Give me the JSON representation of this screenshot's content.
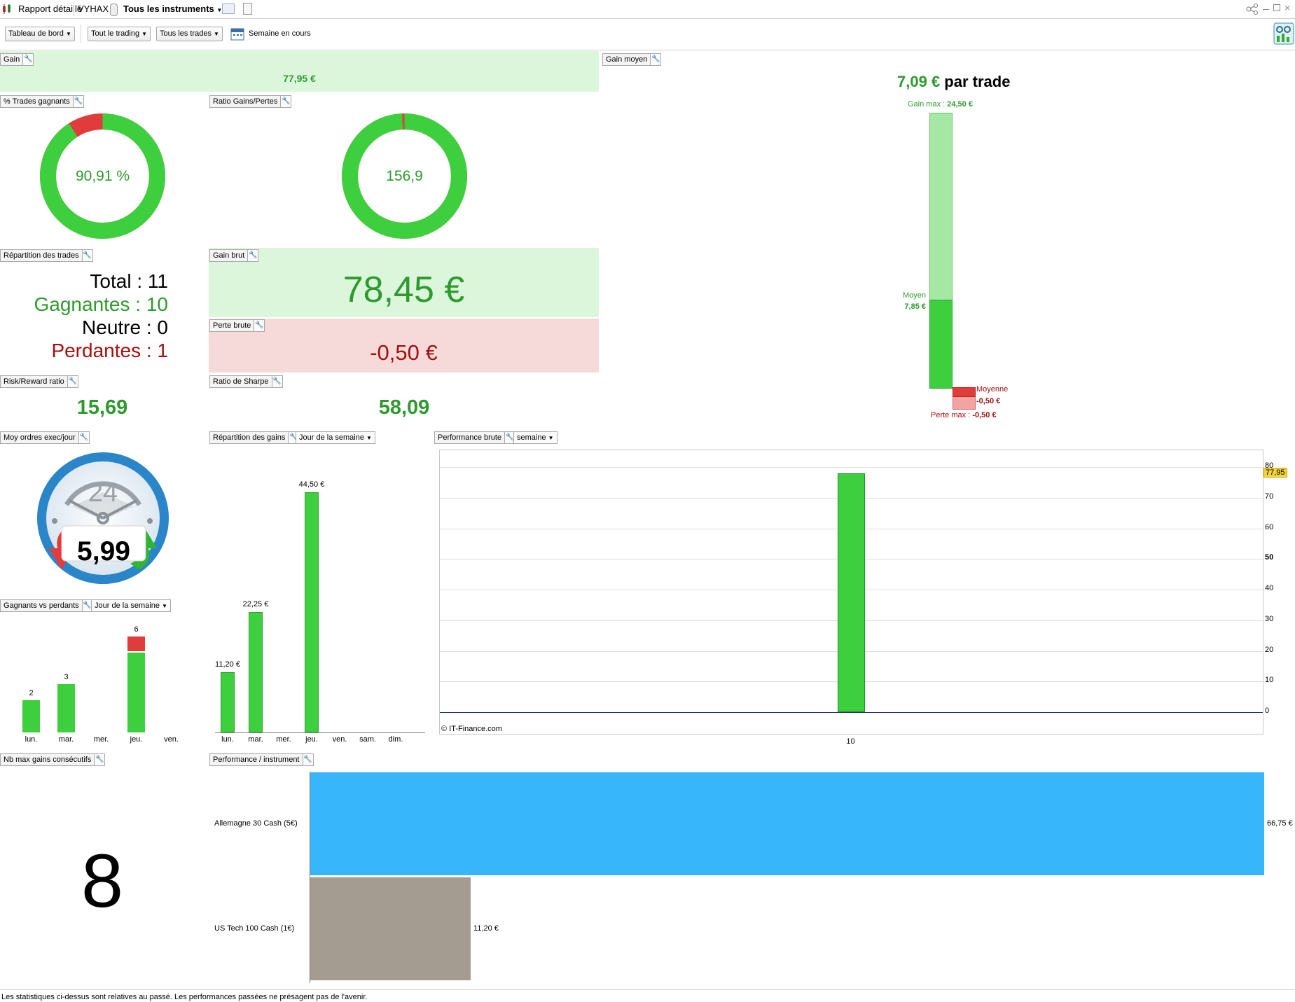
{
  "topbar": {
    "report_label": "Rapport détaillé",
    "account": "VYHAX",
    "instrument_selector": "Tous les instruments"
  },
  "toolbar": {
    "dashboard": "Tableau de bord",
    "trading": "Tout le trading",
    "trades": "Tous les trades",
    "period": "Semaine en cours"
  },
  "panels": {
    "gain": {
      "title": "Gain",
      "value": "77,95 €"
    },
    "gain_moyen": {
      "title": "Gain moyen",
      "value": "7,09 €",
      "suffix": "par trade",
      "gain_max_label": "Gain max :",
      "gain_max_value": "24,50 €",
      "moyen_label": "Moyen",
      "moyen_value": "7,85 €",
      "moyenne_label": "Moyenne",
      "moyenne_value": "-0,50 €",
      "perte_max_label": "Perte max :",
      "perte_max_value": "-0,50 €",
      "avg_gain_fraction": 0.32,
      "avg_loss_fraction": 1.0
    },
    "pct_trades": {
      "title": "% Trades gagnants",
      "value": "90,91 %",
      "win_fraction": 0.9091
    },
    "ratio_gp": {
      "title": "Ratio Gains/Pertes",
      "value": "156,9",
      "gain_fraction": 0.9937
    },
    "repartition": {
      "title": "Répartition des trades",
      "total_label": "Total",
      "total": "11",
      "gagnantes_label": "Gagnantes",
      "gagnantes": "10",
      "neutre_label": "Neutre",
      "neutre": "0",
      "perdantes_label": "Perdantes",
      "perdantes": "1",
      "sep": " : "
    },
    "gain_brut": {
      "title": "Gain brut",
      "value": "78,45 €"
    },
    "perte_brute": {
      "title": "Perte brute",
      "value": "-0,50 €"
    },
    "risk_reward": {
      "title": "Risk/Reward ratio",
      "value": "15,69"
    },
    "sharpe": {
      "title": "Ratio de Sharpe",
      "value": "58,09"
    },
    "moy_ordres": {
      "title": "Moy ordres exec/jour",
      "value": "5,99",
      "gauge_number": "24"
    },
    "repartition_gains": {
      "title": "Répartition des gains",
      "dropdown": "Jour de la semaine"
    },
    "perf_brute": {
      "title": "Performance brute",
      "dropdown": "semaine",
      "copyright": "© IT-Finance.com"
    },
    "gagnants_perdants": {
      "title": "Gagnants vs perdants",
      "dropdown": "Jour de la semaine"
    },
    "nb_max_gains": {
      "title": "Nb max gains consécutifs",
      "value": "8"
    },
    "perf_instrument": {
      "title": "Performance / instrument"
    }
  },
  "chart_data": [
    {
      "type": "bar",
      "title": "Répartition des gains",
      "categories": [
        "lun.",
        "mar.",
        "mer.",
        "jeu.",
        "ven.",
        "sam.",
        "dim."
      ],
      "values": [
        11.2,
        22.25,
        null,
        44.5,
        null,
        null,
        null
      ],
      "labels": [
        "11,20 €",
        "22,25 €",
        "",
        "44,50 €",
        "",
        "",
        ""
      ],
      "ylim": [
        0,
        48
      ]
    },
    {
      "type": "bar",
      "title": "Gagnants vs perdants",
      "categories": [
        "lun.",
        "mar.",
        "mer.",
        "jeu.",
        "ven."
      ],
      "series": [
        {
          "values": [
            2,
            3,
            0,
            5,
            0
          ],
          "color": "#3ecf3e"
        },
        {
          "values": [
            0,
            0,
            0,
            1,
            0
          ],
          "color": "#e03c3c"
        }
      ],
      "totals": [
        "2",
        "3",
        "",
        "6",
        ""
      ],
      "ylim": [
        0,
        6.3
      ]
    },
    {
      "type": "bar",
      "title": "Performance brute",
      "categories": [
        "10"
      ],
      "values": [
        77.95
      ],
      "yticks": [
        "0",
        "10",
        "20",
        "30",
        "40",
        "50",
        "60",
        "70",
        "80"
      ],
      "last_value_label": "77,95",
      "ylim": [
        0,
        80
      ],
      "grid": true
    },
    {
      "type": "bar",
      "orientation": "horizontal",
      "title": "Performance / instrument",
      "categories": [
        "Allemagne 30 Cash (5€)",
        "US Tech 100 Cash (1€)"
      ],
      "values": [
        66.75,
        11.2
      ],
      "labels": [
        "66,75 €",
        "11,20 €"
      ],
      "colors": [
        "#38b6fb",
        "#a59c91"
      ]
    }
  ],
  "disclaimer": "Les statistiques ci-dessus sont relatives au passé. Les performances passées ne présagent pas de l'avenir."
}
